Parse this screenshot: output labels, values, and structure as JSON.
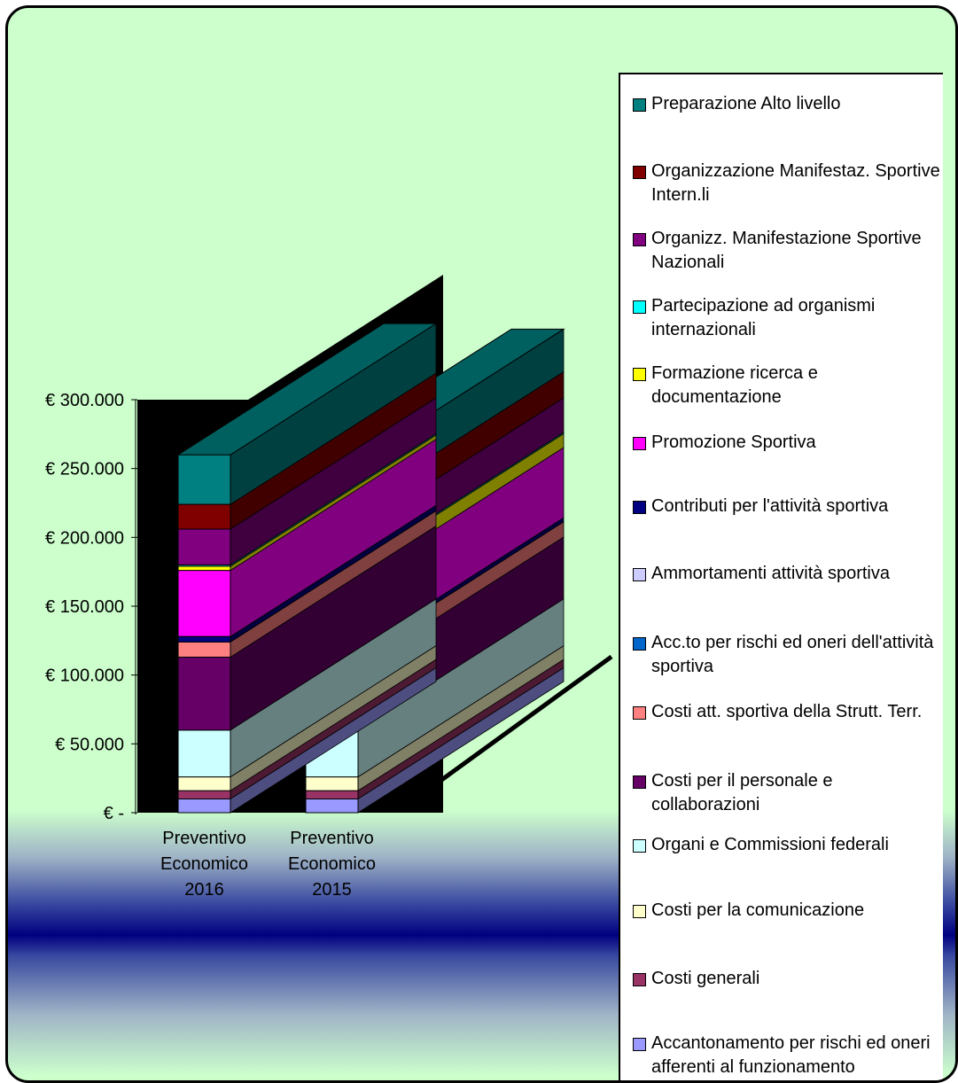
{
  "chart_data": {
    "type": "bar",
    "stacked": true,
    "three_d": true,
    "categories": [
      "Preventivo Economico 2016",
      "Preventivo Economico 2015"
    ],
    "y_ticks": [
      "€ -",
      "€ 50.000",
      "€ 100.000",
      "€ 150.000",
      "€ 200.000",
      "€ 250.000",
      "€ 300.000"
    ],
    "ylim": [
      0,
      300000
    ],
    "legend_position": "right",
    "series": [
      {
        "name": "Accantonamento per rischi ed oneri afferenti al funzionamento",
        "color": "#9999ff",
        "values": [
          10000,
          10000
        ]
      },
      {
        "name": "Costi generali",
        "color": "#993366",
        "values": [
          6000,
          6000
        ]
      },
      {
        "name": "Costi per la comunicazione",
        "color": "#ffffcc",
        "values": [
          10000,
          10000
        ]
      },
      {
        "name": "Organi e Commissioni federali",
        "color": "#ccffff",
        "values": [
          34000,
          34000
        ]
      },
      {
        "name": "Costi per il personale e collaborazioni",
        "color": "#660066",
        "values": [
          53000,
          45000
        ]
      },
      {
        "name": "Costi att. sportiva della Strutt. Terr.",
        "color": "#ff8080",
        "values": [
          11000,
          11000
        ]
      },
      {
        "name": "Acc.to per rischi ed oneri dell'attività sportiva",
        "color": "#0066cc",
        "values": [
          0,
          0
        ]
      },
      {
        "name": "Ammortamenti attività sportiva",
        "color": "#ccccff",
        "values": [
          0,
          0
        ]
      },
      {
        "name": "Contributi per l'attività sportiva",
        "color": "#000080",
        "values": [
          4000,
          3000
        ]
      },
      {
        "name": "Promozione Sportiva",
        "color": "#ff00ff",
        "values": [
          48000,
          51000
        ]
      },
      {
        "name": "Formazione ricerca e documentazione",
        "color": "#ffff00",
        "values": [
          3000,
          10000
        ]
      },
      {
        "name": "Partecipazione ad organismi internazionali",
        "color": "#00ffff",
        "values": [
          1000,
          1000
        ]
      },
      {
        "name": "Organizz. Manifestazione Sportive Nazionali",
        "color": "#800080",
        "values": [
          26000,
          25000
        ]
      },
      {
        "name": "Organizzazione Manifestaz. Sportive Intern.li",
        "color": "#800000",
        "values": [
          18000,
          19000
        ]
      },
      {
        "name": "Preparazione Alto livello",
        "color": "#008080",
        "values": [
          36000,
          31000
        ]
      }
    ]
  },
  "legend": {
    "order": [
      14,
      13,
      12,
      11,
      10,
      9,
      8,
      7,
      6,
      5,
      4,
      3,
      2,
      1,
      0
    ]
  }
}
